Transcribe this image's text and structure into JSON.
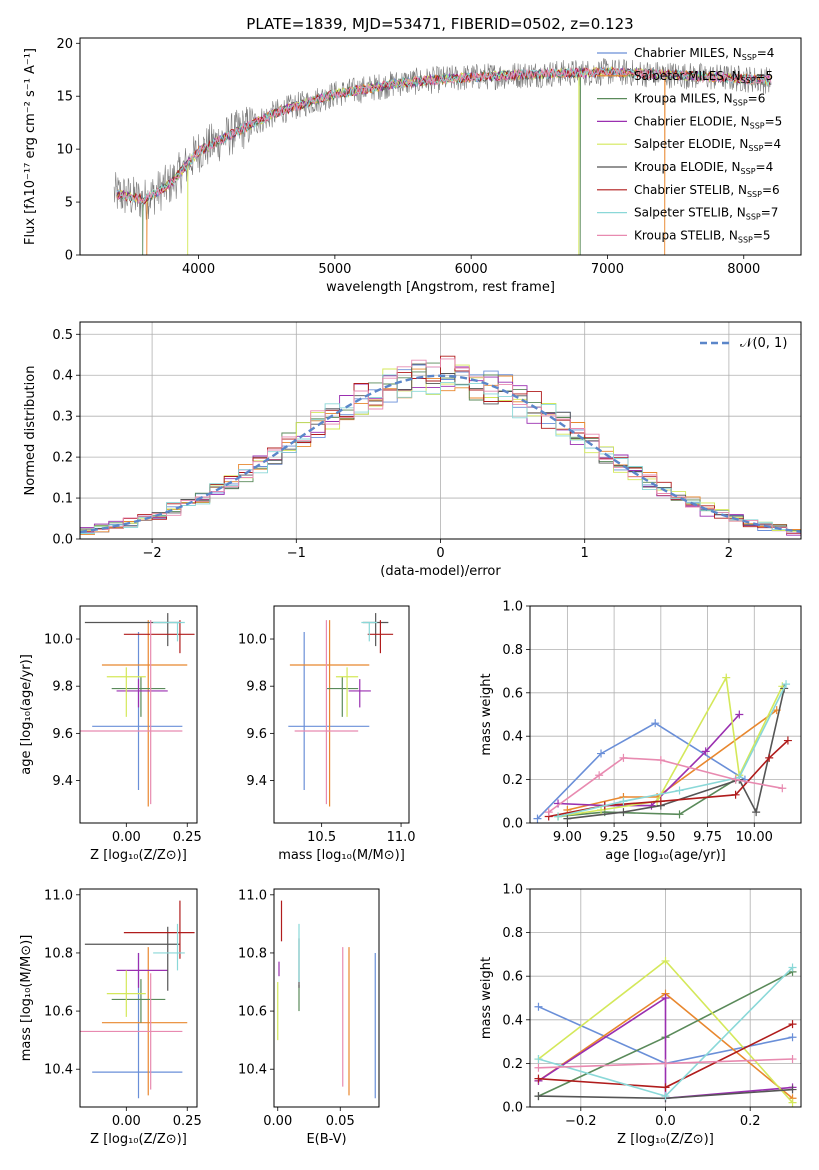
{
  "figure": {
    "title": "PLATE=1839, MJD=53471, FIBERID=0502, z=0.123",
    "colors": [
      "#6a8fd8",
      "#e8872e",
      "#5a8a5a",
      "#9a2fb0",
      "#d4e85a",
      "#555555",
      "#b01c1c",
      "#8ad8d8",
      "#e88ab0"
    ]
  },
  "chart_data": [
    {
      "id": "spectrum",
      "type": "line",
      "title": "PLATE=1839, MJD=53471, FIBERID=0502, z=0.123",
      "xlabel": "wavelength [Angstrom, rest frame]",
      "ylabel": "Flux [fλ10⁻¹⁷ erg cm⁻² s⁻¹ A⁻¹]",
      "xlim": [
        3130,
        8420
      ],
      "ylim": [
        0,
        20.5
      ],
      "xticks": [
        4000,
        5000,
        6000,
        7000,
        8000
      ],
      "yticks": [
        0,
        5,
        10,
        15,
        20
      ],
      "grid": false,
      "legend_position": "top-right",
      "continuum_knots": [
        [
          3380,
          5.8
        ],
        [
          3600,
          5.2
        ],
        [
          3800,
          6.8
        ],
        [
          4000,
          9.8
        ],
        [
          4300,
          11.8
        ],
        [
          4600,
          13.6
        ],
        [
          5000,
          15.2
        ],
        [
          5500,
          16.3
        ],
        [
          6000,
          16.8
        ],
        [
          6500,
          17.1
        ],
        [
          7000,
          17.3
        ],
        [
          7500,
          17.0
        ],
        [
          8200,
          16.5
        ]
      ],
      "series": [
        {
          "name": "Chabrier MILES, N",
          "sub": "SSP",
          "tail": "=4"
        },
        {
          "name": "Salpeter MILES, N",
          "sub": "SSP",
          "tail": "=5"
        },
        {
          "name": "Kroupa MILES, N",
          "sub": "SSP",
          "tail": "=6"
        },
        {
          "name": "Chabrier ELODIE, N",
          "sub": "SSP",
          "tail": "=5"
        },
        {
          "name": "Salpeter ELODIE, N",
          "sub": "SSP",
          "tail": "=4"
        },
        {
          "name": "Kroupa ELODIE, N",
          "sub": "SSP",
          "tail": "=4"
        },
        {
          "name": "Chabrier STELIB, N",
          "sub": "SSP",
          "tail": "=6"
        },
        {
          "name": "Salpeter STELIB, N",
          "sub": "SSP",
          "tail": "=7"
        },
        {
          "name": "Kroupa STELIB, N",
          "sub": "SSP",
          "tail": "=5"
        }
      ]
    },
    {
      "id": "residuals",
      "type": "bar",
      "xlabel": "(data-model)/error",
      "ylabel": "Normed distribution",
      "xlim": [
        -2.5,
        2.5
      ],
      "ylim": [
        0,
        0.53
      ],
      "xticks": [
        -2,
        -1,
        0,
        1,
        2
      ],
      "yticks": [
        0.0,
        0.1,
        0.2,
        0.3,
        0.4,
        0.5
      ],
      "grid": true,
      "bin_width": 0.1,
      "reference": {
        "label": "𝒩(0, 1)",
        "mu": 0,
        "sigma": 1
      }
    },
    {
      "id": "z_age",
      "type": "scatter",
      "xlabel": "Z [log₁₀(Z/Z⊙)]",
      "ylabel": "age  [log₁₀(age/yr)]",
      "xlim": [
        -0.19,
        0.29
      ],
      "ylim": [
        9.22,
        10.14
      ],
      "xticks": [
        0.0,
        0.25
      ],
      "yticks": [
        9.4,
        9.6,
        9.8,
        10.0
      ],
      "points": [
        {
          "x": 0.05,
          "y": 9.63,
          "xerr": [
            0.19,
            0.18
          ],
          "yerr": [
            0.27,
            0.4
          ]
        },
        {
          "x": 0.09,
          "y": 9.89,
          "xerr": [
            0.19,
            0.16
          ],
          "yerr": [
            0.6,
            0.19
          ]
        },
        {
          "x": 0.06,
          "y": 9.79,
          "xerr": [
            0.12,
            0.1
          ],
          "yerr": [
            0.12,
            0.05
          ]
        },
        {
          "x": 0.05,
          "y": 9.78,
          "xerr": [
            0.09,
            0.12
          ],
          "yerr": [
            0.07,
            0.05
          ]
        },
        {
          "x": 0.0,
          "y": 9.84,
          "xerr": [
            0.08,
            0.08
          ],
          "yerr": [
            0.17,
            0.04
          ]
        },
        {
          "x": 0.17,
          "y": 10.07,
          "xerr": [
            0.34,
            0.05
          ],
          "yerr": [
            0.1,
            0.04
          ]
        },
        {
          "x": 0.22,
          "y": 10.02,
          "xerr": [
            0.23,
            0.06
          ],
          "yerr": [
            0.08,
            0.06
          ]
        },
        {
          "x": 0.21,
          "y": 10.07,
          "xerr": [
            0.1,
            0.03
          ],
          "yerr": [
            0.08,
            0.0
          ]
        },
        {
          "x": 0.1,
          "y": 9.61,
          "xerr": [
            0.36,
            0.13
          ],
          "yerr": [
            0.31,
            0.47
          ]
        }
      ]
    },
    {
      "id": "mass_age",
      "type": "scatter",
      "xlabel": "mass [log₁₀(M/M⊙)]",
      "ylabel": "",
      "xlim": [
        10.2,
        11.05
      ],
      "ylim": [
        9.22,
        10.14
      ],
      "xticks": [
        10.5,
        11.0
      ],
      "yticks": [
        9.4,
        9.6,
        9.8,
        10.0
      ],
      "points": [
        {
          "x": 10.39,
          "y": 9.63,
          "xerr": [
            0.1,
            0.41
          ],
          "yerr": [
            0.27,
            0.4
          ]
        },
        {
          "x": 10.55,
          "y": 9.89,
          "xerr": [
            0.25,
            0.25
          ],
          "yerr": [
            0.6,
            0.19
          ]
        },
        {
          "x": 10.63,
          "y": 9.79,
          "xerr": [
            0.1,
            0.1
          ],
          "yerr": [
            0.12,
            0.05
          ]
        },
        {
          "x": 10.74,
          "y": 9.78,
          "xerr": [
            0.07,
            0.07
          ],
          "yerr": [
            0.07,
            0.05
          ]
        },
        {
          "x": 10.66,
          "y": 9.84,
          "xerr": [
            0.07,
            0.07
          ],
          "yerr": [
            0.17,
            0.04
          ]
        },
        {
          "x": 10.84,
          "y": 10.07,
          "xerr": [
            0.08,
            0.08
          ],
          "yerr": [
            0.1,
            0.04
          ]
        },
        {
          "x": 10.87,
          "y": 10.02,
          "xerr": [
            0.08,
            0.08
          ],
          "yerr": [
            0.08,
            0.06
          ]
        },
        {
          "x": 10.8,
          "y": 10.07,
          "xerr": [
            0.05,
            0.05
          ],
          "yerr": [
            0.08,
            0.0
          ]
        },
        {
          "x": 10.53,
          "y": 9.61,
          "xerr": [
            0.2,
            0.2
          ],
          "yerr": [
            0.31,
            0.47
          ]
        }
      ]
    },
    {
      "id": "age_weight",
      "type": "line",
      "xlabel": "age  [log₁₀(age/yr)]",
      "ylabel": "mass weight",
      "xlim": [
        8.8,
        10.25
      ],
      "ylim": [
        0,
        1
      ],
      "xticks": [
        9.0,
        9.25,
        9.5,
        9.75,
        10.0
      ],
      "yticks": [
        0.0,
        0.2,
        0.4,
        0.6,
        0.8,
        1.0
      ],
      "grid": true,
      "series": [
        [
          [
            8.84,
            0.02
          ],
          [
            9.18,
            0.32
          ],
          [
            9.47,
            0.46
          ],
          [
            9.95,
            0.2
          ]
        ],
        [
          [
            9.0,
            0.06
          ],
          [
            9.3,
            0.12
          ],
          [
            9.48,
            0.12
          ],
          [
            10.12,
            0.52
          ]
        ],
        [
          [
            8.95,
            0.03
          ],
          [
            9.2,
            0.05
          ],
          [
            9.6,
            0.04
          ],
          [
            9.9,
            0.2
          ]
        ],
        [
          [
            8.95,
            0.09
          ],
          [
            9.2,
            0.08
          ],
          [
            9.45,
            0.08
          ],
          [
            9.74,
            0.33
          ],
          [
            9.92,
            0.5
          ]
        ],
        [
          [
            8.95,
            0.03
          ],
          [
            9.18,
            0.06
          ],
          [
            9.48,
            0.1
          ],
          [
            9.85,
            0.67
          ],
          [
            9.92,
            0.22
          ],
          [
            10.15,
            0.63
          ]
        ],
        [
          [
            9.0,
            0.02
          ],
          [
            9.3,
            0.05
          ],
          [
            9.5,
            0.08
          ],
          [
            9.92,
            0.2
          ],
          [
            10.01,
            0.05
          ],
          [
            10.16,
            0.62
          ]
        ],
        [
          [
            8.9,
            0.03
          ],
          [
            9.2,
            0.08
          ],
          [
            9.5,
            0.1
          ],
          [
            9.9,
            0.13
          ],
          [
            10.08,
            0.3
          ],
          [
            10.18,
            0.38
          ]
        ],
        [
          [
            8.95,
            0.03
          ],
          [
            9.3,
            0.1
          ],
          [
            9.6,
            0.15
          ],
          [
            9.92,
            0.21
          ],
          [
            10.17,
            0.64
          ]
        ],
        [
          [
            8.9,
            0.05
          ],
          [
            9.17,
            0.22
          ],
          [
            9.3,
            0.3
          ],
          [
            9.5,
            0.29
          ],
          [
            9.9,
            0.2
          ],
          [
            10.15,
            0.16
          ]
        ]
      ]
    },
    {
      "id": "z_mass",
      "type": "scatter",
      "xlabel": "Z [log₁₀(Z/Z⊙)]",
      "ylabel": "mass [log₁₀(M/M⊙)]",
      "xlim": [
        -0.19,
        0.29
      ],
      "ylim": [
        10.27,
        11.02
      ],
      "xticks": [
        0.0,
        0.25
      ],
      "yticks": [
        10.4,
        10.6,
        10.8,
        11.0
      ],
      "points": [
        {
          "x": 0.05,
          "y": 10.39,
          "xerr": [
            0.19,
            0.18
          ],
          "yerr": [
            0.09,
            0.41
          ]
        },
        {
          "x": 0.09,
          "y": 10.56,
          "xerr": [
            0.19,
            0.16
          ],
          "yerr": [
            0.25,
            0.26
          ]
        },
        {
          "x": 0.06,
          "y": 10.64,
          "xerr": [
            0.12,
            0.1
          ],
          "yerr": [
            0.08,
            0.07
          ]
        },
        {
          "x": 0.05,
          "y": 10.74,
          "xerr": [
            0.09,
            0.12
          ],
          "yerr": [
            0.06,
            0.06
          ]
        },
        {
          "x": 0.0,
          "y": 10.66,
          "xerr": [
            0.08,
            0.08
          ],
          "yerr": [
            0.08,
            0.08
          ]
        },
        {
          "x": 0.17,
          "y": 10.83,
          "xerr": [
            0.34,
            0.05
          ],
          "yerr": [
            0.16,
            0.06
          ]
        },
        {
          "x": 0.22,
          "y": 10.87,
          "xerr": [
            0.23,
            0.06
          ],
          "yerr": [
            0.09,
            0.11
          ]
        },
        {
          "x": 0.21,
          "y": 10.8,
          "xerr": [
            0.1,
            0.03
          ],
          "yerr": [
            0.06,
            0.1
          ]
        },
        {
          "x": 0.1,
          "y": 10.53,
          "xerr": [
            0.36,
            0.13
          ],
          "yerr": [
            0.2,
            0.2
          ]
        }
      ]
    },
    {
      "id": "ebv_mass",
      "type": "scatter",
      "xlabel": "E(B-V)",
      "ylabel": "",
      "xlim": [
        -0.003,
        0.081
      ],
      "ylim": [
        10.27,
        11.02
      ],
      "xticks": [
        0.0,
        0.05
      ],
      "yticks": [
        10.4,
        10.6,
        10.8,
        11.0
      ],
      "points": [
        {
          "x": 0.078,
          "y": 10.39,
          "yerr": [
            0.09,
            0.41
          ]
        },
        {
          "x": 0.057,
          "y": 10.56,
          "yerr": [
            0.25,
            0.26
          ]
        },
        {
          "x": 0.017,
          "y": 10.64,
          "yerr": [
            0.04,
            0.05
          ]
        },
        {
          "x": 0.001,
          "y": 10.74,
          "yerr": [
            0.02,
            0.03
          ]
        },
        {
          "x": 0.0,
          "y": 10.6,
          "yerr": [
            0.1,
            0.1
          ]
        },
        {
          "x": 0.017,
          "y": 10.81,
          "yerr": [
            0.13,
            0.04
          ]
        },
        {
          "x": 0.003,
          "y": 10.9,
          "yerr": [
            0.06,
            0.08
          ]
        },
        {
          "x": 0.017,
          "y": 10.8,
          "yerr": [
            0.1,
            0.1
          ]
        },
        {
          "x": 0.052,
          "y": 10.58,
          "yerr": [
            0.24,
            0.24
          ]
        }
      ]
    },
    {
      "id": "z_weight",
      "type": "line",
      "xlabel": "Z [log₁₀(Z/Z⊙)]",
      "ylabel": "mass weight",
      "xlim": [
        -0.32,
        0.32
      ],
      "ylim": [
        0,
        1
      ],
      "xticks": [
        -0.2,
        0.0,
        0.2
      ],
      "yticks": [
        0.0,
        0.2,
        0.4,
        0.6,
        0.8,
        1.0
      ],
      "grid": true,
      "series": [
        [
          [
            -0.3,
            0.46
          ],
          [
            0.0,
            0.2
          ],
          [
            0.3,
            0.32
          ]
        ],
        [
          [
            -0.3,
            0.12
          ],
          [
            0.0,
            0.52
          ],
          [
            0.3,
            0.04
          ]
        ],
        [
          [
            -0.3,
            0.05
          ],
          [
            0.0,
            0.32
          ],
          [
            0.3,
            0.62
          ]
        ],
        [
          [
            -0.3,
            0.12
          ],
          [
            0.0,
            0.5
          ],
          [
            0.0,
            0.04
          ],
          [
            0.3,
            0.09
          ]
        ],
        [
          [
            -0.3,
            0.22
          ],
          [
            0.0,
            0.67
          ],
          [
            0.3,
            0.02
          ]
        ],
        [
          [
            -0.3,
            0.05
          ],
          [
            0.0,
            0.04
          ],
          [
            0.3,
            0.08
          ]
        ],
        [
          [
            -0.3,
            0.13
          ],
          [
            0.0,
            0.09
          ],
          [
            0.3,
            0.38
          ]
        ],
        [
          [
            -0.3,
            0.22
          ],
          [
            0.0,
            0.05
          ],
          [
            0.3,
            0.64
          ]
        ],
        [
          [
            -0.3,
            0.18
          ],
          [
            0.0,
            0.2
          ],
          [
            0.3,
            0.22
          ]
        ]
      ]
    }
  ]
}
